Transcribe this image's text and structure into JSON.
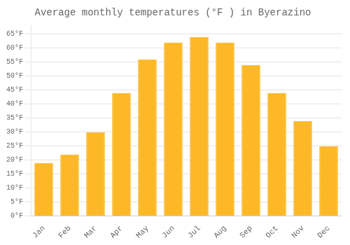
{
  "chart_data": {
    "type": "bar",
    "title": "Average monthly temperatures (°F ) in Byerazino",
    "categories": [
      "Jan",
      "Feb",
      "Mar",
      "Apr",
      "May",
      "Jun",
      "Jul",
      "Aug",
      "Sep",
      "Oct",
      "Nov",
      "Dec"
    ],
    "values": [
      19,
      22,
      30,
      44,
      56,
      62,
      64,
      62,
      54,
      44,
      34,
      25
    ],
    "color": "#FDB827",
    "ylim": [
      0,
      68
    ],
    "yticks": [
      {
        "value": 0,
        "label": "0°F"
      },
      {
        "value": 5,
        "label": "5°F"
      },
      {
        "value": 10,
        "label": "10°F"
      },
      {
        "value": 15,
        "label": "15°F"
      },
      {
        "value": 20,
        "label": "20°F"
      },
      {
        "value": 25,
        "label": "25°F"
      },
      {
        "value": 30,
        "label": "30°F"
      },
      {
        "value": 35,
        "label": "35°F"
      },
      {
        "value": 40,
        "label": "40°F"
      },
      {
        "value": 45,
        "label": "45°F"
      },
      {
        "value": 50,
        "label": "50°F"
      },
      {
        "value": 55,
        "label": "55°F"
      },
      {
        "value": 60,
        "label": "60°F"
      },
      {
        "value": 65,
        "label": "65°F"
      }
    ],
    "grid": true
  }
}
